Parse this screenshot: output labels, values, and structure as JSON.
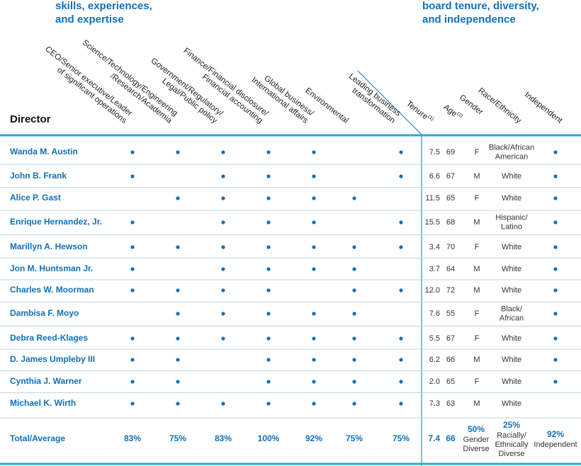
{
  "header": {
    "left_title": [
      "skills, experiences,",
      "and expertise"
    ],
    "right_title": [
      "board tenure, diversity,",
      "and independence"
    ],
    "director": "Director"
  },
  "skill_columns": [
    [
      "CEO/Senior executive/Leader",
      "of significant operations"
    ],
    [
      "Science/Technology/Engineering",
      "/Research/Academia"
    ],
    [
      "Government/Regulatory/",
      "Legal/Public policy"
    ],
    [
      "Finance/Financial disclosure/",
      "Financial accounting"
    ],
    [
      "Global business/",
      "International affairs"
    ],
    [
      "Environmental"
    ],
    [
      "Leading business",
      "transformation"
    ]
  ],
  "stat_columns": {
    "tenure": {
      "label": "Tenure",
      "note": "(1)"
    },
    "age": {
      "label": "Age",
      "note": "(2)"
    },
    "gender": "Gender",
    "race": "Race/Ethnicity",
    "independent": "Independent"
  },
  "rows": [
    {
      "name": "Wanda M. Austin",
      "skills": [
        true,
        true,
        true,
        true,
        true,
        false,
        true
      ],
      "tenure": "7.5",
      "age": 69,
      "gender": "F",
      "race": [
        "Black/African",
        "American"
      ],
      "independent": true
    },
    {
      "name": "John B. Frank",
      "skills": [
        true,
        false,
        true,
        true,
        true,
        false,
        true
      ],
      "tenure": "6.6",
      "age": 67,
      "gender": "M",
      "race": [
        "White"
      ],
      "independent": true
    },
    {
      "name": "Alice P. Gast",
      "skills": [
        false,
        true,
        true,
        true,
        true,
        true,
        false
      ],
      "tenure": "11.5",
      "age": 65,
      "gender": "F",
      "race": [
        "White"
      ],
      "independent": true
    },
    {
      "name": "Enrique Hernandez, Jr.",
      "skills": [
        true,
        false,
        true,
        true,
        true,
        false,
        true
      ],
      "tenure": "15.5",
      "age": 68,
      "gender": "M",
      "race": [
        "Hispanic/",
        "Latino"
      ],
      "independent": true
    },
    {
      "name": "Marillyn A. Hewson",
      "skills": [
        true,
        true,
        true,
        true,
        true,
        true,
        true
      ],
      "tenure": "3.4",
      "age": 70,
      "gender": "F",
      "race": [
        "White"
      ],
      "independent": true
    },
    {
      "name": "Jon M. Huntsman Jr.",
      "skills": [
        true,
        false,
        true,
        true,
        true,
        true,
        false
      ],
      "tenure": "3.7",
      "age": 64,
      "gender": "M",
      "race": [
        "White"
      ],
      "independent": true
    },
    {
      "name": "Charles W. Moorman",
      "skills": [
        true,
        true,
        true,
        true,
        false,
        true,
        true
      ],
      "tenure": "12.0",
      "age": 72,
      "gender": "M",
      "race": [
        "White"
      ],
      "independent": true
    },
    {
      "name": "Dambisa F. Moyo",
      "skills": [
        false,
        true,
        true,
        true,
        true,
        true,
        false
      ],
      "tenure": "7.6",
      "age": 55,
      "gender": "F",
      "race": [
        "Black/",
        "African"
      ],
      "independent": true
    },
    {
      "name": "Debra Reed-Klages",
      "skills": [
        true,
        true,
        true,
        true,
        true,
        true,
        true
      ],
      "tenure": "5.5",
      "age": 67,
      "gender": "F",
      "race": [
        "White"
      ],
      "independent": true
    },
    {
      "name": "D. James Umpleby III",
      "skills": [
        true,
        true,
        false,
        true,
        true,
        true,
        true
      ],
      "tenure": "6.2",
      "age": 66,
      "gender": "M",
      "race": [
        "White"
      ],
      "independent": true
    },
    {
      "name": "Cynthia J. Warner",
      "skills": [
        true,
        true,
        false,
        true,
        true,
        true,
        true
      ],
      "tenure": "2.0",
      "age": 65,
      "gender": "F",
      "race": [
        "White"
      ],
      "independent": true
    },
    {
      "name": "Michael K. Wirth",
      "skills": [
        true,
        true,
        true,
        true,
        true,
        true,
        true
      ],
      "tenure": "7.3",
      "age": 63,
      "gender": "M",
      "race": [
        "White"
      ],
      "independent": false
    }
  ],
  "total": {
    "label": "Total/Average",
    "skills": [
      "83%",
      "75%",
      "83%",
      "100%",
      "92%",
      "75%",
      "75%"
    ],
    "tenure": "7.4",
    "age": 66,
    "gender": {
      "value": "50%",
      "lines": [
        "Gender",
        "Diverse"
      ]
    },
    "race": {
      "value": "25%",
      "lines": [
        "Racially/",
        "Ethnically",
        "Diverse"
      ]
    },
    "independent": {
      "value": "92%",
      "lines": [
        "Independent"
      ]
    }
  }
}
